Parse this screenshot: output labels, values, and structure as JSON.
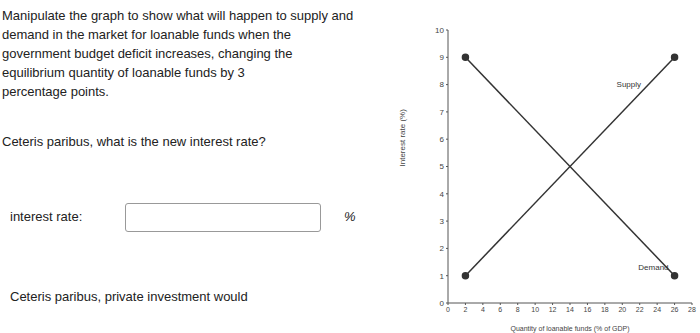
{
  "question": [
    "Manipulate the graph to show what will happen to supply and",
    "demand in the market for loanable funds when the",
    "government budget deficit increases, changing the",
    "equilibrium quantity of loanable funds by 3",
    "percentage points."
  ],
  "prompt": "Ceteris paribus, what is the new interest rate?",
  "input_label": "interest rate:",
  "input_unit": "%",
  "followup": "Ceteris paribus, private investment would",
  "chart_data": {
    "type": "line",
    "x_label": "Quantity of loanable funds (% of GDP)",
    "y_label": "Interest rate (%)",
    "xlim": [
      0,
      28
    ],
    "xticks": [
      0,
      2,
      4,
      6,
      8,
      10,
      12,
      14,
      16,
      18,
      20,
      22,
      24,
      26,
      28
    ],
    "ylim": [
      0,
      10
    ],
    "yticks": [
      0,
      1,
      2,
      3,
      4,
      5,
      6,
      7,
      8,
      9,
      10
    ],
    "grid": false,
    "series": [
      {
        "name": "Supply",
        "color": "#333333",
        "marker": "circle",
        "x": [
          2,
          26
        ],
        "values": [
          1,
          9
        ]
      },
      {
        "name": "Demand",
        "color": "#333333",
        "marker": "circle",
        "x": [
          2,
          26
        ],
        "values": [
          9,
          1
        ]
      }
    ]
  }
}
